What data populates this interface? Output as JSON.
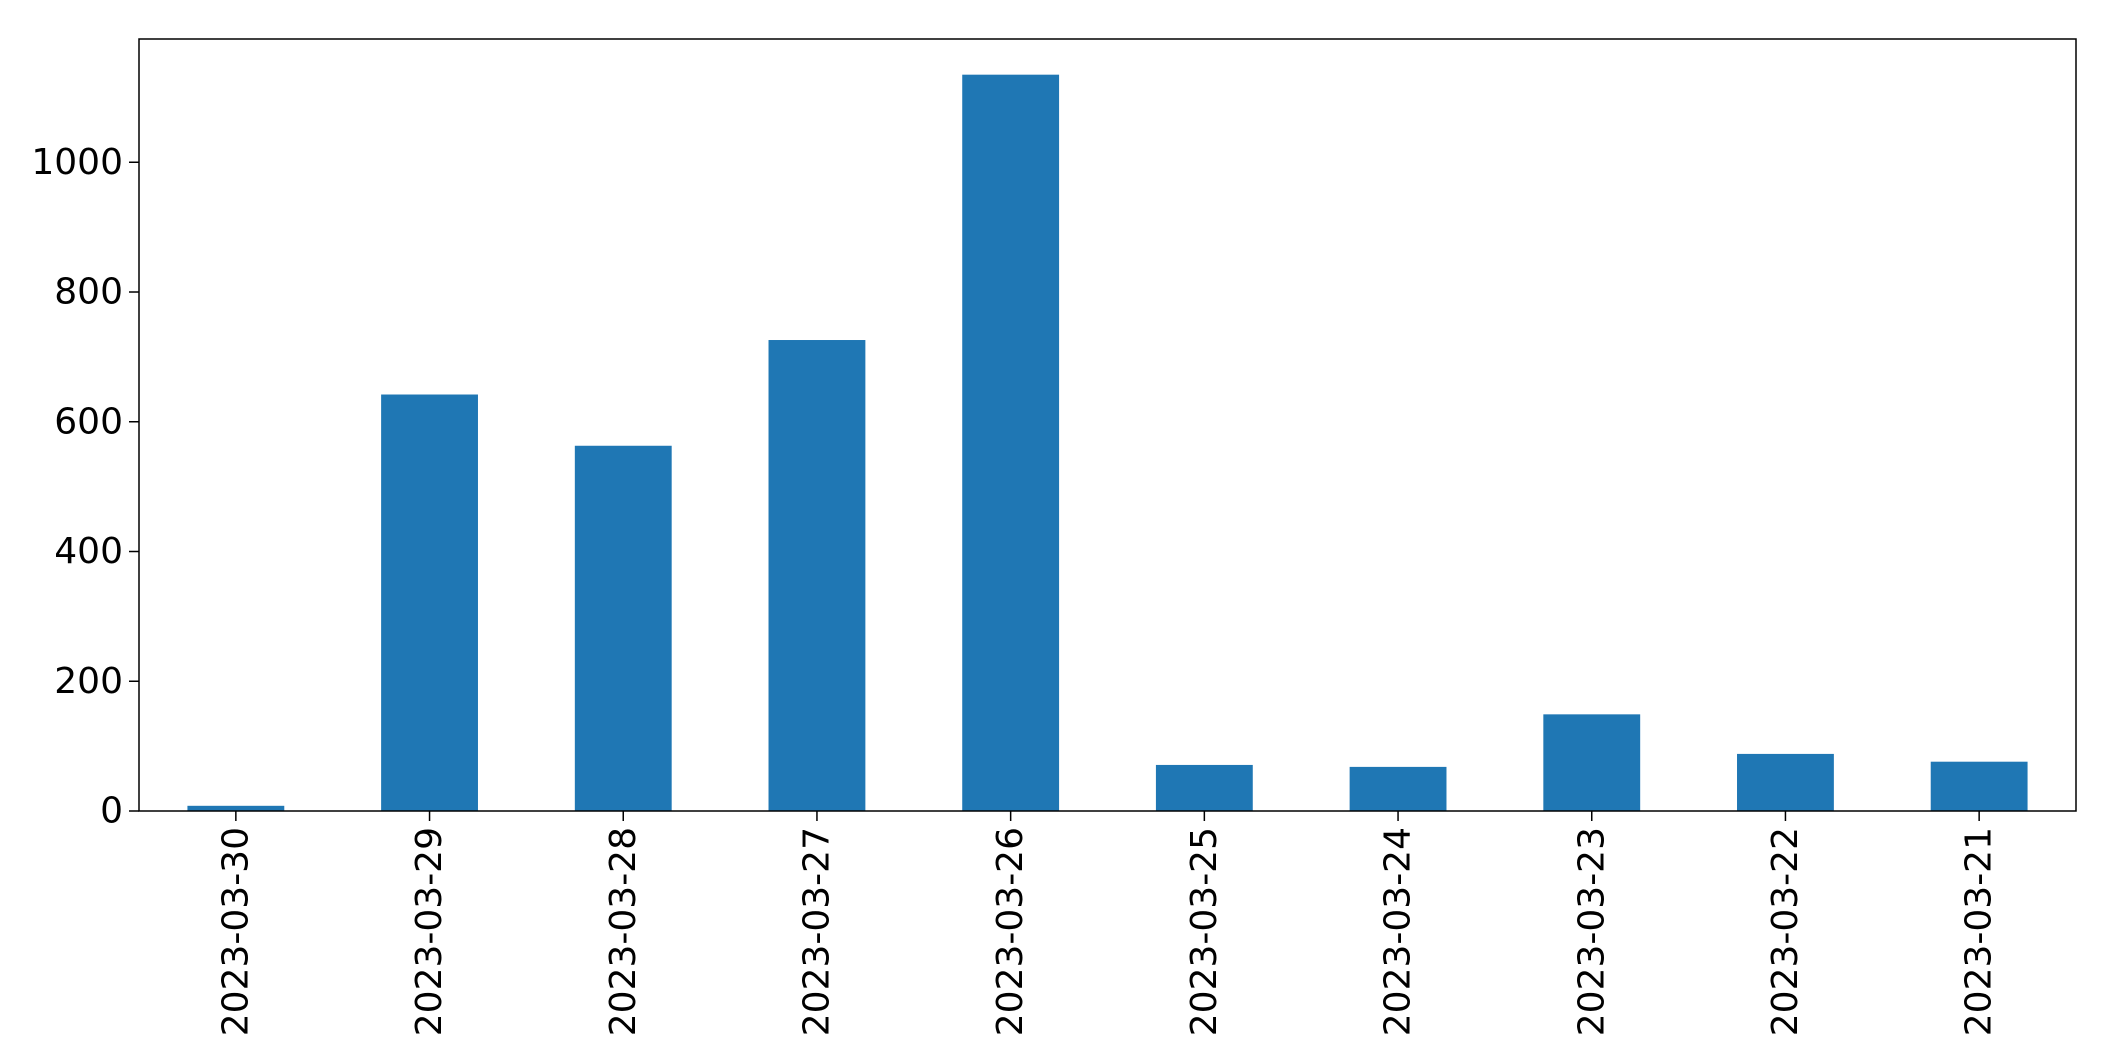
{
  "chart_data": {
    "type": "bar",
    "categories": [
      "2023-03-30",
      "2023-03-29",
      "2023-03-28",
      "2023-03-27",
      "2023-03-26",
      "2023-03-25",
      "2023-03-24",
      "2023-03-23",
      "2023-03-22",
      "2023-03-21"
    ],
    "values": [
      8,
      642,
      563,
      726,
      1135,
      71,
      68,
      149,
      88,
      76
    ],
    "bar_color": "#1f77b4",
    "ylim": [
      0,
      1190
    ],
    "yticks": [
      0,
      200,
      400,
      600,
      800,
      1000
    ],
    "grid": false,
    "legend": null
  }
}
